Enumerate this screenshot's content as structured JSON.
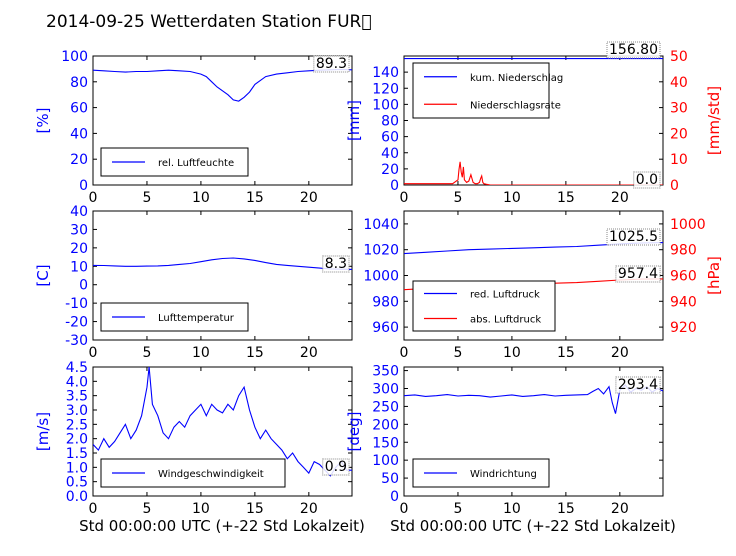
{
  "title": "2014-09-25 Wetterdaten Station FUR\u0000",
  "xlabel": "Std 00:00:00 UTC (+-22 Std Lokalzeit)",
  "colors": {
    "blue": "#0000ff",
    "red": "#ff0000",
    "black": "#000000"
  },
  "chart_data": [
    {
      "type": "line",
      "ylabel": "[%]",
      "xlim": [
        0,
        24
      ],
      "ylim": [
        0,
        100
      ],
      "xticks": [
        0,
        5,
        10,
        15,
        20
      ],
      "yticks": [
        0,
        20,
        40,
        60,
        80,
        100
      ],
      "series": [
        {
          "name": "rel. Luftfeuchte",
          "color": "#0000ff",
          "x": [
            0,
            1,
            2,
            3,
            4,
            5,
            6,
            7,
            8,
            9,
            10,
            10.5,
            11,
            11.5,
            12,
            12.5,
            13,
            13.5,
            14,
            14.5,
            15,
            16,
            17,
            18,
            19,
            20,
            21,
            22,
            23,
            24
          ],
          "y": [
            89,
            88.5,
            88,
            87.5,
            88,
            88,
            88.5,
            89,
            88.5,
            88,
            86,
            84,
            80,
            76,
            73,
            70,
            66,
            65,
            68,
            72,
            78,
            84,
            86,
            87,
            88,
            88.5,
            89,
            89.3,
            89.5,
            89.3
          ]
        }
      ],
      "annotation": "89.3"
    },
    {
      "type": "line",
      "ylabel": "[mm]",
      "ylabel_right": "[mm/std]",
      "xlim": [
        0,
        24
      ],
      "ylim": [
        0,
        160
      ],
      "ylim_right": [
        0,
        50
      ],
      "xticks": [
        0,
        5,
        10,
        15,
        20
      ],
      "yticks": [
        0,
        20,
        40,
        60,
        80,
        100,
        120,
        140
      ],
      "yticks_right": [
        0,
        10,
        20,
        30,
        40,
        50
      ],
      "series": [
        {
          "name": "kum. Niederschlag",
          "color": "#0000ff",
          "axis": "left",
          "x": [
            0,
            24
          ],
          "y": [
            156.8,
            156.8
          ]
        },
        {
          "name": "Niederschlagsrate",
          "color": "#ff0000",
          "axis": "right",
          "x": [
            0,
            4.5,
            5,
            5.1,
            5.2,
            5.3,
            5.4,
            5.5,
            5.6,
            5.8,
            6,
            6.2,
            6.4,
            6.6,
            6.8,
            7,
            7.1,
            7.2,
            7.3,
            7.4,
            7.6,
            8,
            10,
            15,
            20,
            24
          ],
          "y": [
            0.5,
            0.5,
            2,
            6,
            9,
            5,
            3,
            7,
            2,
            1,
            1.5,
            4,
            1,
            0.5,
            0.5,
            1,
            2.5,
            3.5,
            1,
            0.5,
            0.3,
            0,
            0,
            0,
            0,
            0
          ]
        }
      ],
      "annotations": [
        "156.80",
        "0.0"
      ]
    },
    {
      "type": "line",
      "ylabel": "[C]",
      "xlim": [
        0,
        24
      ],
      "ylim": [
        -30,
        40
      ],
      "xticks": [
        0,
        5,
        10,
        15,
        20
      ],
      "yticks": [
        -30,
        -20,
        -10,
        0,
        10,
        20,
        30,
        40
      ],
      "series": [
        {
          "name": "Lufttemperatur",
          "color": "#0000ff",
          "x": [
            0,
            1,
            2,
            3,
            4,
            5,
            6,
            7,
            8,
            9,
            10,
            11,
            12,
            13,
            14,
            15,
            16,
            17,
            18,
            19,
            20,
            21,
            22,
            23,
            24
          ],
          "y": [
            10.5,
            10.4,
            10.2,
            10,
            10,
            10.1,
            10.2,
            10.5,
            11,
            11.5,
            12.5,
            13.5,
            14.2,
            14.5,
            14,
            13.2,
            12,
            11,
            10.5,
            10,
            9.5,
            9,
            8.6,
            8.4,
            8.3
          ]
        }
      ],
      "annotation": "8.3"
    },
    {
      "type": "line",
      "ylabel_right": "[hPa]",
      "xlim": [
        0,
        24
      ],
      "ylim": [
        950,
        1050
      ],
      "ylim_right": [
        910,
        1010
      ],
      "xticks": [
        0,
        5,
        10,
        15,
        20
      ],
      "yticks": [
        960,
        980,
        1000,
        1020,
        1040
      ],
      "yticks_right": [
        920,
        940,
        960,
        980,
        1000
      ],
      "series": [
        {
          "name": "red. Luftdruck",
          "color": "#0000ff",
          "axis": "left",
          "x": [
            0,
            2,
            4,
            6,
            8,
            10,
            12,
            14,
            16,
            18,
            20,
            22,
            24
          ],
          "y": [
            1017,
            1018,
            1019,
            1020,
            1020.5,
            1021,
            1021.5,
            1022,
            1022.5,
            1023.5,
            1024.5,
            1025.2,
            1025.5
          ]
        },
        {
          "name": "abs. Luftdruck",
          "color": "#ff0000",
          "axis": "right",
          "x": [
            0,
            2,
            4,
            6,
            8,
            10,
            12,
            14,
            16,
            18,
            20,
            22,
            24
          ],
          "y": [
            949,
            950,
            951,
            952,
            952.5,
            953,
            953.5,
            954,
            954.5,
            955.5,
            956.5,
            957.2,
            957.4
          ]
        }
      ],
      "annotations": [
        "1025.5",
        "957.4"
      ]
    },
    {
      "type": "line",
      "ylabel": "[m/s]",
      "xlim": [
        0,
        24
      ],
      "ylim": [
        0,
        4.5
      ],
      "xticks": [
        0,
        5,
        10,
        15,
        20
      ],
      "yticks": [
        0.0,
        0.5,
        1.0,
        1.5,
        2.0,
        2.5,
        3.0,
        3.5,
        4.0,
        4.5
      ],
      "series": [
        {
          "name": "Windgeschwindigkeit",
          "color": "#0000ff",
          "x": [
            0,
            0.5,
            1,
            1.5,
            2,
            2.5,
            3,
            3.5,
            4,
            4.5,
            5,
            5.2,
            5.5,
            6,
            6.5,
            7,
            7.5,
            8,
            8.5,
            9,
            9.5,
            10,
            10.5,
            11,
            11.5,
            12,
            12.5,
            13,
            13.5,
            14,
            14.5,
            15,
            15.5,
            16,
            16.5,
            17,
            17.5,
            18,
            18.5,
            19,
            19.5,
            20,
            20.5,
            21,
            21.5,
            22,
            22.5,
            23,
            23.5,
            24
          ],
          "y": [
            1.8,
            1.6,
            2.0,
            1.7,
            1.9,
            2.2,
            2.5,
            2.0,
            2.3,
            2.8,
            3.8,
            4.5,
            3.2,
            2.8,
            2.2,
            2.0,
            2.4,
            2.6,
            2.4,
            2.8,
            3.0,
            3.2,
            2.8,
            3.2,
            3.0,
            2.9,
            3.2,
            3.0,
            3.5,
            3.8,
            3.0,
            2.4,
            2.0,
            2.3,
            2.0,
            1.8,
            1.6,
            1.3,
            1.5,
            1.2,
            1.0,
            0.8,
            1.2,
            1.1,
            0.9,
            0.7,
            1.0,
            1.2,
            0.9,
            0.9
          ]
        }
      ],
      "annotation": "0.9"
    },
    {
      "type": "line",
      "ylabel": "[deg]",
      "xlim": [
        0,
        24
      ],
      "ylim": [
        0,
        360
      ],
      "xticks": [
        0,
        5,
        10,
        15,
        20
      ],
      "yticks": [
        0,
        50,
        100,
        150,
        200,
        250,
        300,
        350
      ],
      "series": [
        {
          "name": "Windrichtung",
          "color": "#0000ff",
          "x": [
            0,
            1,
            2,
            3,
            4,
            5,
            6,
            7,
            8,
            9,
            10,
            11,
            12,
            13,
            14,
            15,
            16,
            17,
            17.5,
            18,
            18.5,
            19,
            19.3,
            19.6,
            20,
            20.5,
            21,
            21.5,
            22,
            22.5,
            23,
            23.5,
            24
          ],
          "y": [
            280,
            282,
            278,
            280,
            283,
            279,
            281,
            280,
            276,
            279,
            282,
            278,
            280,
            283,
            279,
            281,
            282,
            283,
            292,
            300,
            285,
            305,
            260,
            230,
            295,
            310,
            290,
            300,
            295,
            305,
            290,
            300,
            293
          ]
        }
      ],
      "annotation": "293.4"
    }
  ]
}
